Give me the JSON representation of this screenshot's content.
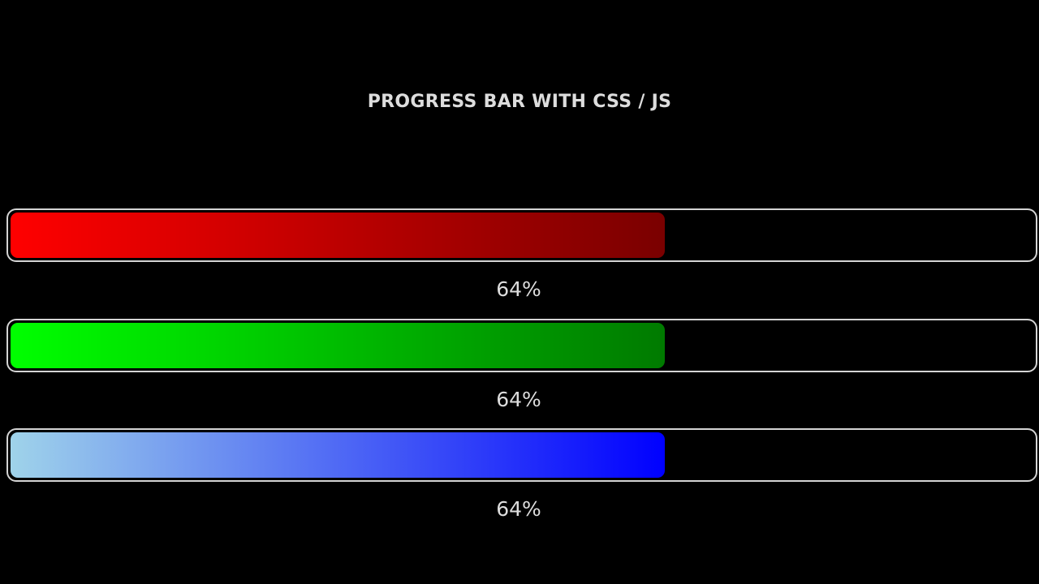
{
  "title": "PROGRESS BAR WITH CSS / JS",
  "bars": [
    {
      "label": "64%",
      "progress": 0.64,
      "color_start": "#ff0000",
      "color_end": "#7a0000"
    },
    {
      "label": "64%",
      "progress": 0.64,
      "color_start": "#00ff00",
      "color_end": "#007a00"
    },
    {
      "label": "64%",
      "progress": 0.64,
      "color_start": "#9fd3ea",
      "color_end": "#0000ff"
    }
  ]
}
